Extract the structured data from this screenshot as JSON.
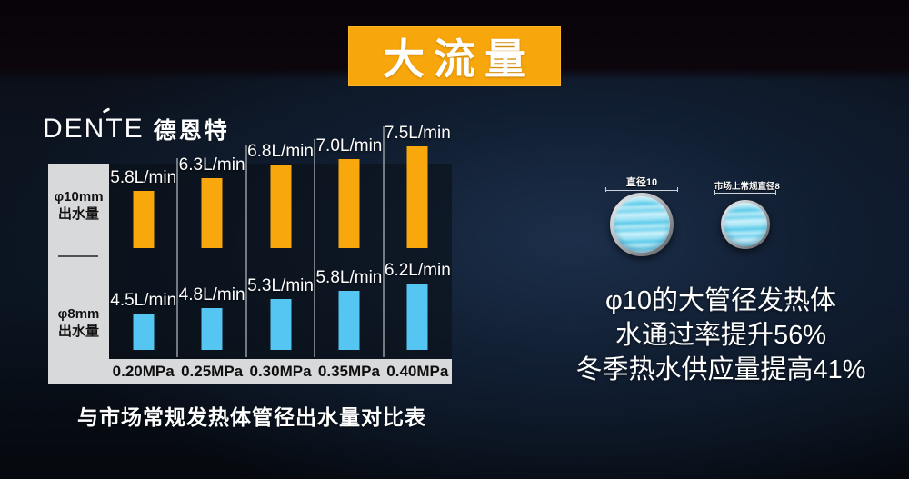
{
  "banner": {
    "title": "大流量",
    "bg_color": "#F7A60B"
  },
  "logo": {
    "latin": "DENTE",
    "cn": "德恩特"
  },
  "y_panel": {
    "top_line1": "φ10mm",
    "top_line2": "出水量",
    "bottom_line1": "φ8mm",
    "bottom_line2": "出水量"
  },
  "chart_data": {
    "type": "bar",
    "title": "与市场常规发热体管径出水量对比表",
    "categories": [
      "0.20MPa",
      "0.25MPa",
      "0.30MPa",
      "0.35MPa",
      "0.40MPa"
    ],
    "unit": "L/min",
    "series": [
      {
        "name": "φ10mm出水量",
        "color": "#F8A70D",
        "values": [
          5.8,
          6.3,
          6.8,
          7.0,
          7.5
        ]
      },
      {
        "name": "φ8mm出水量",
        "color": "#54C6F1",
        "values": [
          4.5,
          4.8,
          5.3,
          5.8,
          6.2
        ]
      }
    ],
    "legend_position": "left",
    "grid": false,
    "panel_color": "#D8D9DB"
  },
  "caption": "与市场常规发热体管径出水量对比表",
  "pipes": {
    "large_label": "直径10",
    "small_label": "市场上常规直径8"
  },
  "benefits": {
    "line1": "φ10的大管径发热体",
    "line2": "水通过率提升56%",
    "line3": "冬季热水供应量提高41%"
  }
}
